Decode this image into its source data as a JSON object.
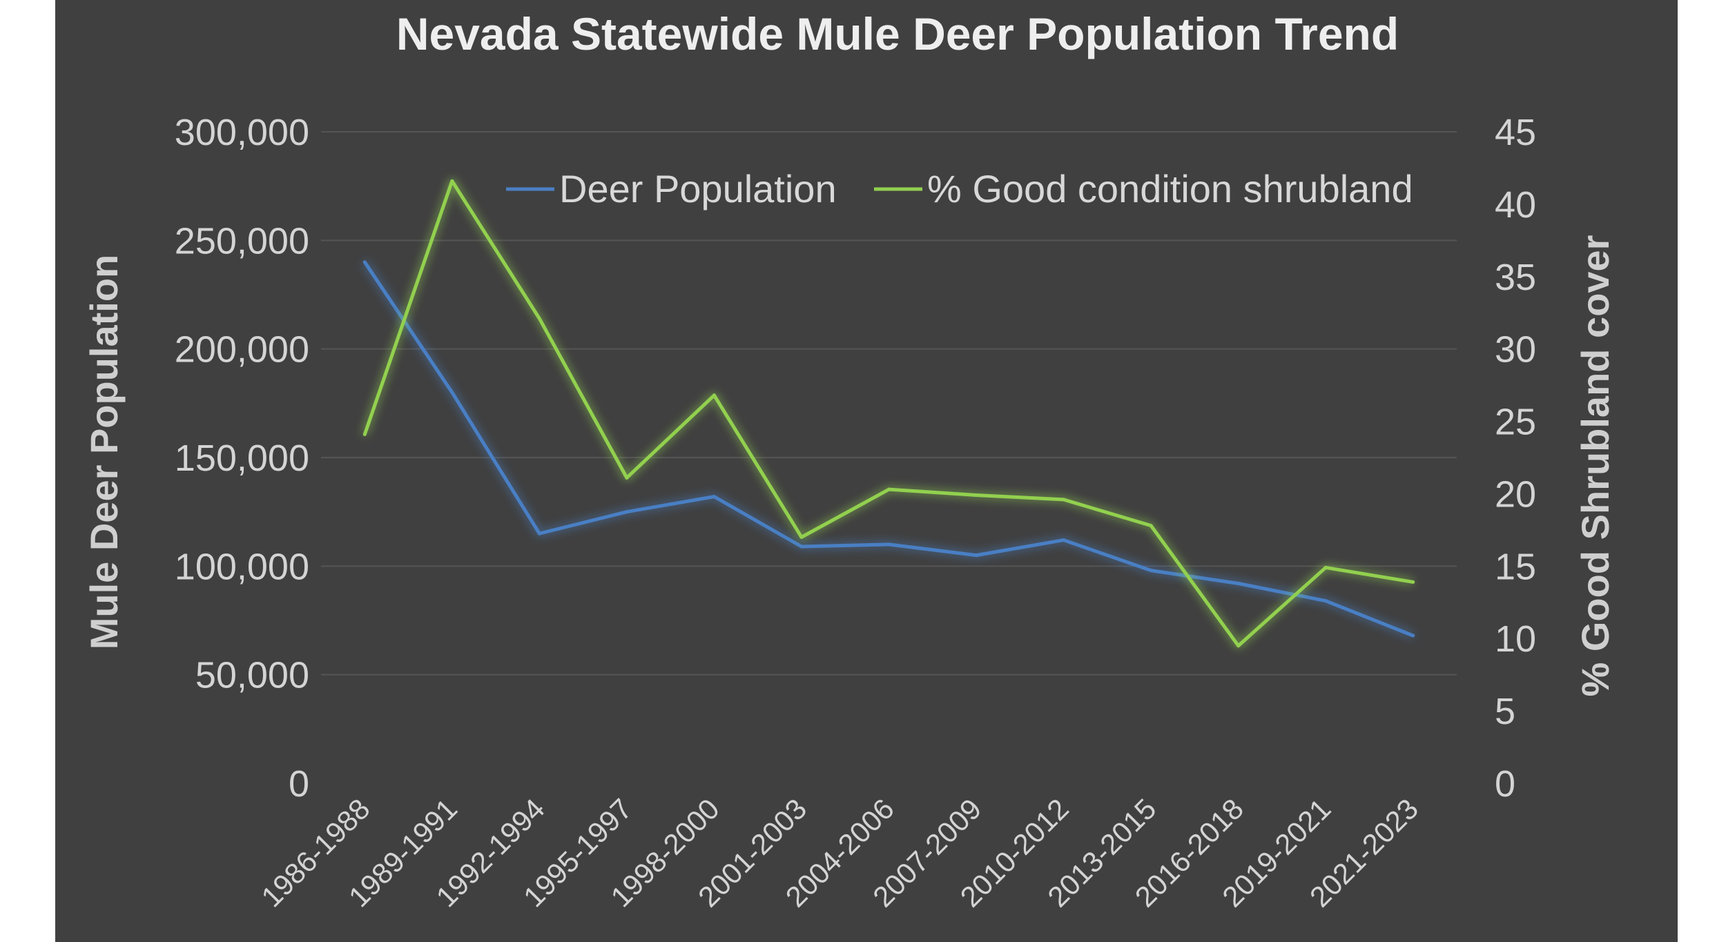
{
  "chart_data": {
    "type": "line",
    "title": "Nevada Statewide Mule Deer Population Trend",
    "categories": [
      "1986-1988",
      "1989-1991",
      "1992-1994",
      "1995-1997",
      "1998-2000",
      "2001-2003",
      "2004-2006",
      "2007-2009",
      "2010-2012",
      "2013-2015",
      "2016-2018",
      "2019-2021",
      "2021-2023"
    ],
    "ylabel": "Mule Deer Population",
    "y2label": "% Good Shrubland cover",
    "ylim": [
      0,
      300000
    ],
    "y2lim": [
      0,
      45
    ],
    "yticks": [
      "0",
      "50,000",
      "100,000",
      "150,000",
      "200,000",
      "250,000",
      "300,000"
    ],
    "y2ticks": [
      "0",
      "5",
      "10",
      "15",
      "20",
      "25",
      "30",
      "35",
      "40",
      "45"
    ],
    "grid": true,
    "legend_position": "top-right",
    "series": [
      {
        "name": "Deer Population",
        "axis": "left",
        "color": "#4a7fc4",
        "values": [
          240000,
          180000,
          115000,
          125000,
          132000,
          109000,
          110000,
          105000,
          112000,
          98000,
          92000,
          84000,
          68000
        ]
      },
      {
        "name": "% Good condition shrubland",
        "axis": "right",
        "color": "#92d050",
        "values": [
          24.1,
          41.6,
          32.1,
          21.1,
          26.8,
          17.0,
          20.3,
          19.9,
          19.6,
          17.8,
          9.5,
          14.9,
          13.9
        ]
      }
    ]
  },
  "colors": {
    "panel": "#404040",
    "gridline": "#555555",
    "page": "#ffffff"
  }
}
